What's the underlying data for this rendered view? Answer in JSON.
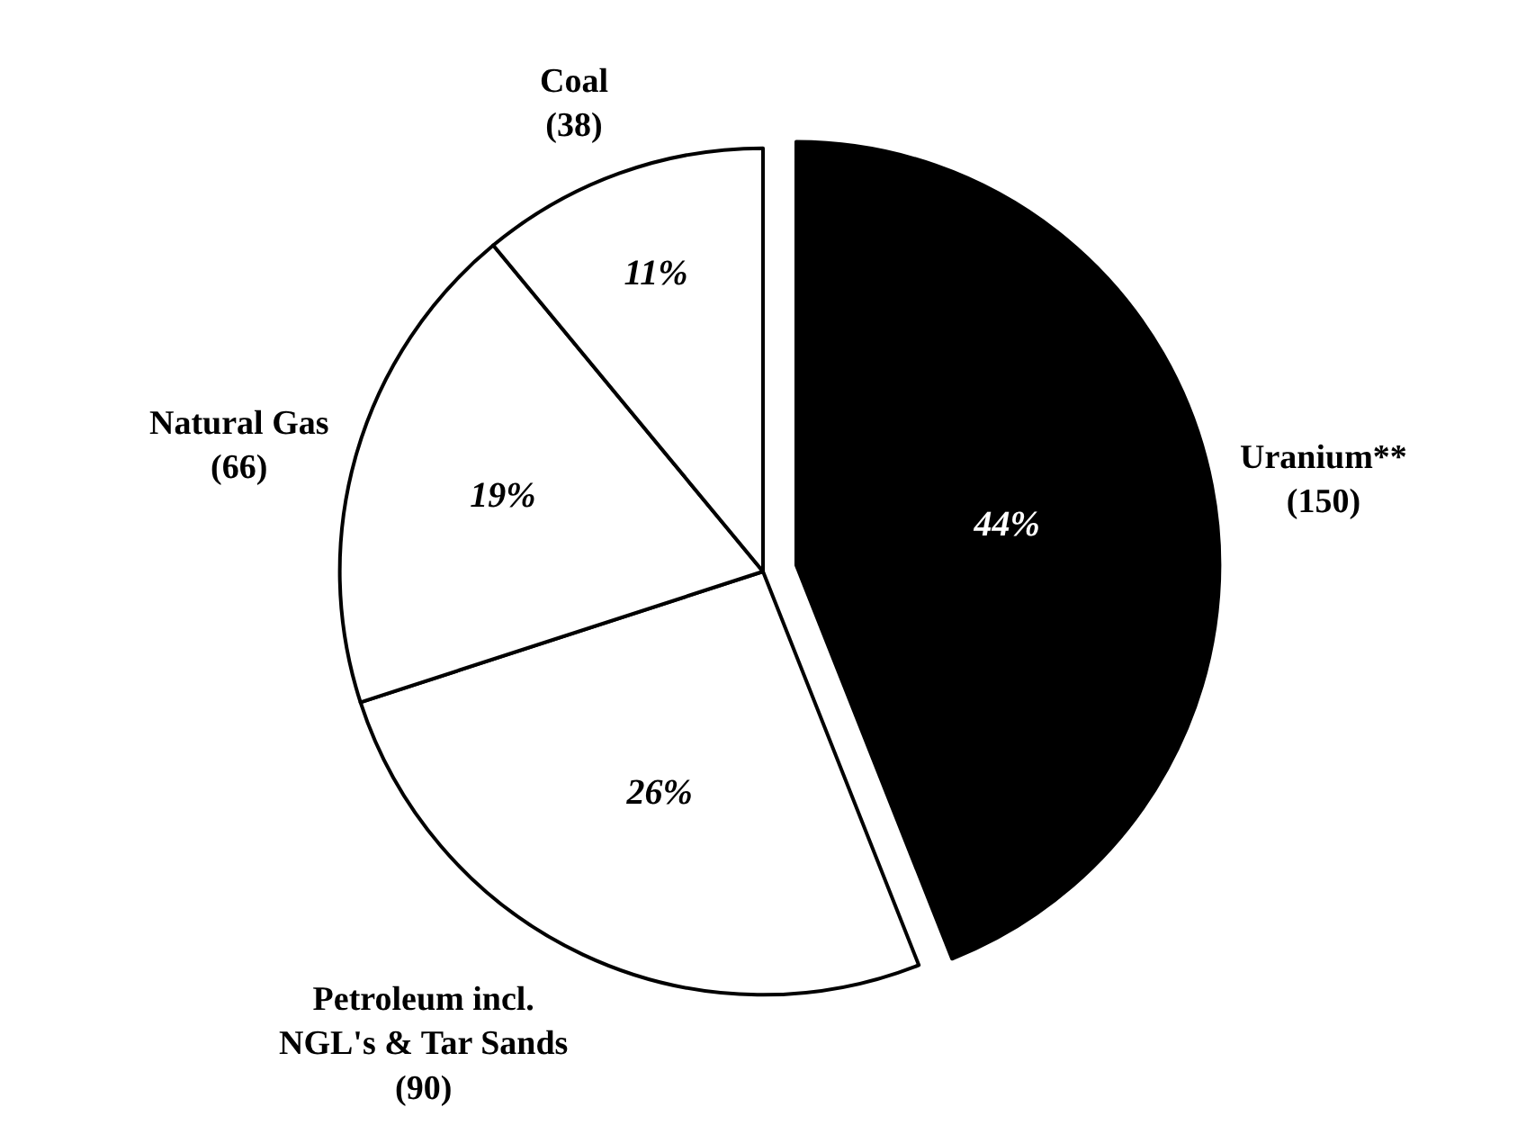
{
  "chart_data": {
    "type": "pie",
    "categories": [
      "Uranium**\n(150)",
      "Petroleum incl.\nNGL's & Tar Sands\n(90)",
      "Natural Gas\n(66)",
      "Coal\n(38)"
    ],
    "values": [
      44,
      26,
      19,
      11
    ],
    "colors": [
      "#000000",
      "#ffffff",
      "#ffffff",
      "#ffffff"
    ],
    "value_labels": [
      "44%",
      "26%",
      "19%",
      "11%"
    ],
    "legend": false
  }
}
